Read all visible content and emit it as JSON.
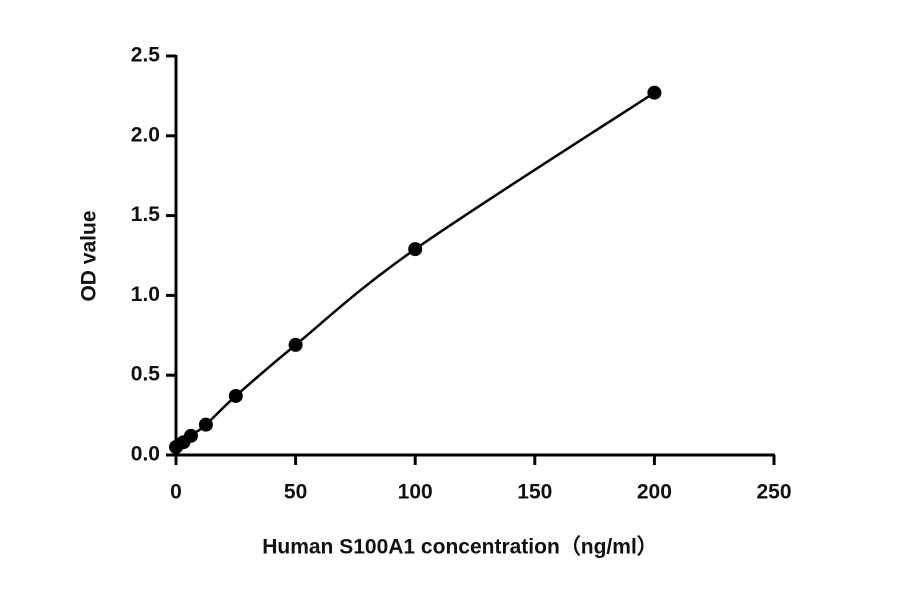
{
  "chart_data": {
    "type": "scatter",
    "x_label": "Human S100A1 concentration（ng/ml）",
    "y_label": "OD value",
    "x": [
      0,
      3.125,
      6.25,
      12.5,
      25,
      50,
      100,
      200
    ],
    "values": [
      0.05,
      0.08,
      0.12,
      0.19,
      0.37,
      0.69,
      1.29,
      2.27
    ],
    "color": "#000000",
    "fit_line": true,
    "xlim": [
      0,
      250
    ],
    "xticks": [
      0,
      50,
      100,
      150,
      200,
      250
    ],
    "ylim": [
      0,
      2.5
    ],
    "yticks": [
      {
        "value": 0,
        "label": "0.0"
      },
      0.5,
      {
        "value": 1,
        "label": "1.0"
      },
      1.5,
      {
        "value": 2,
        "label": "2.0"
      },
      2.5
    ]
  }
}
